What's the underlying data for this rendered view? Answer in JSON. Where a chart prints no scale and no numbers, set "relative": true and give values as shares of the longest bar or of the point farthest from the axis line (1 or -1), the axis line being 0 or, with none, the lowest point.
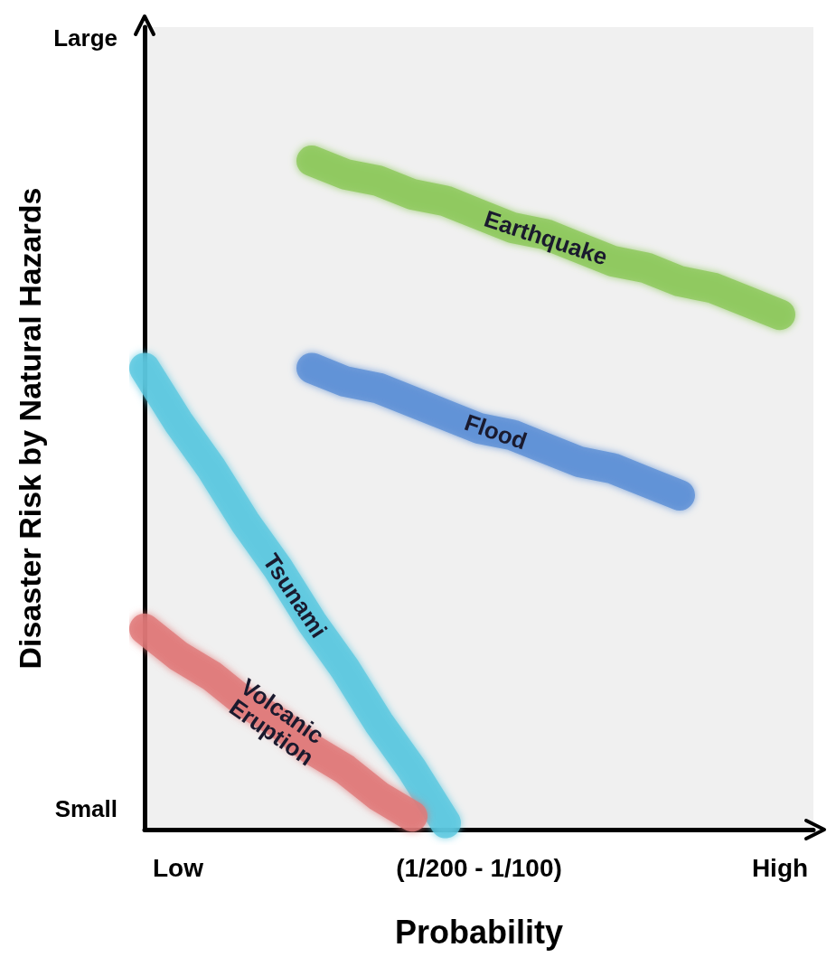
{
  "chart_data": {
    "type": "line",
    "xlabel": "Probability",
    "ylabel": "Disaster Risk by Natural Hazards",
    "relative": true,
    "categories": [
      null,
      "Low",
      null,
      null,
      null,
      null,
      null,
      null,
      null,
      null,
      "(1/200 - 1/100)",
      null,
      null,
      null,
      null,
      null,
      null,
      null,
      null,
      "High",
      null
    ],
    "annotations": [
      "Large",
      "Small"
    ],
    "marker": "none",
    "line_style": "solid",
    "series": [
      {
        "name": "Earthquake",
        "color": "#8cc85a",
        "values": [
          null,
          null,
          null,
          null,
          null,
          1.0,
          0.98,
          0.97,
          0.95,
          0.94,
          0.92,
          0.9,
          0.89,
          0.87,
          0.85,
          0.84,
          0.82,
          0.81,
          0.79,
          0.77,
          null
        ]
      },
      {
        "name": "Flood",
        "color": "#5b8fd6",
        "values": [
          null,
          null,
          null,
          null,
          null,
          0.69,
          0.67,
          0.66,
          0.64,
          0.62,
          0.6,
          0.59,
          0.57,
          0.55,
          0.54,
          0.52,
          0.5,
          null,
          null,
          null,
          null
        ]
      },
      {
        "name": "Tsunami",
        "color": "#5bc8e0",
        "values": [
          0.69,
          0.61,
          0.54,
          0.46,
          0.39,
          0.31,
          0.24,
          0.16,
          0.09,
          0.01,
          null,
          null,
          null,
          null,
          null,
          null,
          null,
          null,
          null,
          null,
          null
        ]
      },
      {
        "name": "Volcanic Eruption",
        "color": "#e07878",
        "values": [
          0.3,
          0.26,
          0.23,
          0.19,
          0.16,
          0.12,
          0.09,
          0.05,
          0.02,
          null,
          null,
          null,
          null,
          null,
          null,
          null,
          null,
          null,
          null,
          null,
          null
        ]
      }
    ]
  }
}
